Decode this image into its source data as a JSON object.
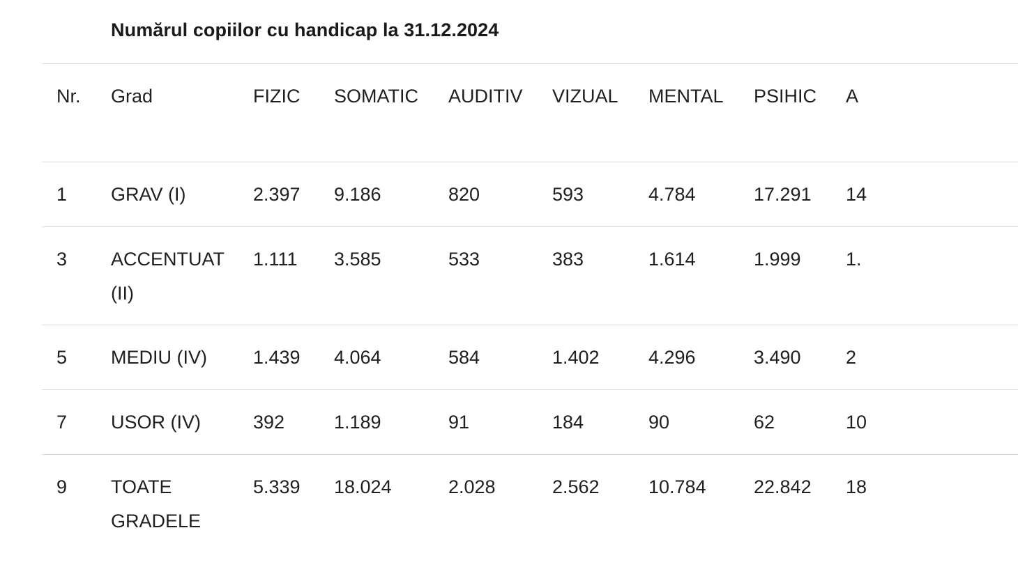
{
  "title": "Numărul copiilor cu handicap la 31.12.2024",
  "table": {
    "columns": [
      "Nr.",
      "Grad",
      "FIZIC",
      "SOMATIC",
      "AUDITIV",
      "VIZUAL",
      "MENTAL",
      "PSIHIC",
      "A"
    ],
    "rows": [
      [
        "1",
        "GRAV (I)",
        "2.397",
        "9.186",
        "820",
        "593",
        "4.784",
        "17.291",
        "14"
      ],
      [
        "3",
        "ACCENTUAT (II)",
        "1.111",
        "3.585",
        "533",
        "383",
        "1.614",
        "1.999",
        "1."
      ],
      [
        "5",
        "MEDIU (IV)",
        "1.439",
        "4.064",
        "584",
        "1.402",
        "4.296",
        "3.490",
        "2"
      ],
      [
        "7",
        "USOR (IV)",
        "392",
        "1.189",
        "91",
        "184",
        "90",
        "62",
        "10"
      ],
      [
        "9",
        "TOATE GRADELE",
        "5.339",
        "18.024",
        "2.028",
        "2.562",
        "10.784",
        "22.842",
        "18"
      ]
    ]
  }
}
